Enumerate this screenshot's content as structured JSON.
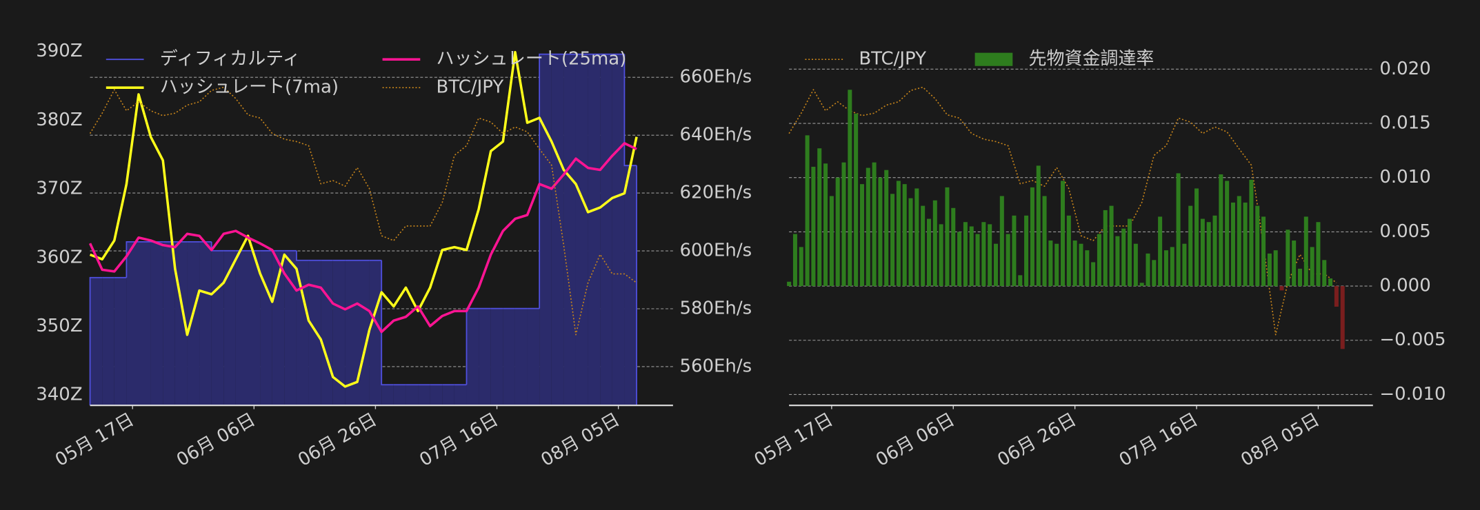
{
  "chart_data": [
    {
      "type": "line",
      "x": [
        "05-10",
        "05-12",
        "05-14",
        "05-16",
        "05-18",
        "05-20",
        "05-22",
        "05-24",
        "05-26",
        "05-28",
        "05-30",
        "06-01",
        "06-03",
        "06-05",
        "06-07",
        "06-09",
        "06-11",
        "06-13",
        "06-15",
        "06-17",
        "06-19",
        "06-21",
        "06-23",
        "06-25",
        "06-27",
        "06-29",
        "07-01",
        "07-03",
        "07-05",
        "07-07",
        "07-09",
        "07-11",
        "07-13",
        "07-15",
        "07-17",
        "07-19",
        "07-21",
        "07-23",
        "07-25",
        "07-27",
        "07-29",
        "07-31",
        "08-02",
        "08-04",
        "08-06",
        "08-08"
      ],
      "xlim": [
        "05-10",
        "08-14"
      ],
      "xticks": [
        {
          "value": "05-17",
          "label": "05月 17日"
        },
        {
          "value": "06-06",
          "label": "06月 06日"
        },
        {
          "value": "06-26",
          "label": "06月 26日"
        },
        {
          "value": "07-16",
          "label": "07月 16日"
        },
        {
          "value": "08-05",
          "label": "08月 05日"
        }
      ],
      "ylim": [
        338.5,
        392
      ],
      "yticks": [
        {
          "value": 340,
          "label": "340Z"
        },
        {
          "value": 350,
          "label": "350Z"
        },
        {
          "value": 360,
          "label": "360Z"
        },
        {
          "value": 370,
          "label": "370Z"
        },
        {
          "value": 380,
          "label": "380Z"
        },
        {
          "value": 390,
          "label": "390Z"
        }
      ],
      "y2lim": [
        546.6,
        673.7
      ],
      "y2ticks": [
        {
          "value": 560,
          "label": "560Eh/s"
        },
        {
          "value": 580,
          "label": "580Eh/s"
        },
        {
          "value": 600,
          "label": "600Eh/s"
        },
        {
          "value": 620,
          "label": "620Eh/s"
        },
        {
          "value": 640,
          "label": "640Eh/s"
        },
        {
          "value": 660,
          "label": "660Eh/s"
        }
      ],
      "y3lim": [
        6890000,
        11420000
      ],
      "grid": "y2",
      "legend": "upper left",
      "series": [
        {
          "name": "ディフィカルティ",
          "color": "#5050e0",
          "fill": "#2b2b6b",
          "style": "step-area",
          "values": [
            357.1,
            357.1,
            357.1,
            362.3,
            362.3,
            362.3,
            362.3,
            362.3,
            362.3,
            362.3,
            361.0,
            361.0,
            361.0,
            361.0,
            361.0,
            361.0,
            361.0,
            359.6,
            359.6,
            359.6,
            359.6,
            359.6,
            359.6,
            359.6,
            341.5,
            341.5,
            341.5,
            341.5,
            341.5,
            341.5,
            341.5,
            352.6,
            352.6,
            352.6,
            352.6,
            352.6,
            352.6,
            389.6,
            389.6,
            389.6,
            389.6,
            389.6,
            389.6,
            389.6,
            373.4,
            373.4
          ]
        },
        {
          "name": "ハッシュレート(7ma)",
          "color": "#ffff1a",
          "axis": "y2",
          "style": "solid",
          "values": [
            598.7,
            597.1,
            603.6,
            623.1,
            654.1,
            639.4,
            631.3,
            593.8,
            571.0,
            586.3,
            585.0,
            589.0,
            597.1,
            605.2,
            592.2,
            582.4,
            598.7,
            593.8,
            575.9,
            569.4,
            556.4,
            553.1,
            554.7,
            572.7,
            585.7,
            580.8,
            587.3,
            579.2,
            587.3,
            600.3,
            601.3,
            600.3,
            614.4,
            634.5,
            637.8,
            668.7,
            644.3,
            646.0,
            637.8,
            628.0,
            623.1,
            613.4,
            615.0,
            618.3,
            619.9,
            639.4
          ]
        },
        {
          "name": "ハッシュレート(25ma)",
          "color": "#ff1493",
          "axis": "y2",
          "style": "solid",
          "values": [
            602.6,
            593.5,
            592.9,
            598.1,
            604.6,
            603.6,
            602.0,
            601.3,
            605.9,
            605.2,
            600.3,
            605.9,
            606.9,
            604.6,
            602.6,
            600.3,
            592.2,
            586.3,
            588.3,
            587.3,
            581.8,
            579.8,
            581.8,
            579.2,
            572.0,
            575.9,
            577.2,
            580.8,
            574.0,
            577.5,
            579.2,
            579.2,
            587.3,
            598.7,
            606.9,
            611.1,
            612.4,
            623.1,
            621.5,
            626.4,
            631.9,
            628.7,
            628.0,
            632.9,
            637.2,
            635.2
          ]
        },
        {
          "name": "BTC/JPY",
          "color": "#c8851a",
          "axis": "y3",
          "style": "dotted",
          "values": [
            10240000,
            10490000,
            10780000,
            10520000,
            10630000,
            10520000,
            10460000,
            10490000,
            10590000,
            10630000,
            10770000,
            10810000,
            10670000,
            10470000,
            10430000,
            10240000,
            10170000,
            10140000,
            10090000,
            9620000,
            9660000,
            9590000,
            9820000,
            9560000,
            8980000,
            8920000,
            9100000,
            9100000,
            9100000,
            9390000,
            9970000,
            10090000,
            10430000,
            10380000,
            10240000,
            10320000,
            10260000,
            10050000,
            9850000,
            8860000,
            7760000,
            8400000,
            8750000,
            8510000,
            8510000,
            8400000
          ]
        }
      ]
    },
    {
      "type": "bar",
      "xlim": [
        "05-10",
        "08-14"
      ],
      "xticks": [
        {
          "value": "05-17",
          "label": "05月 17日"
        },
        {
          "value": "06-06",
          "label": "06月 06日"
        },
        {
          "value": "06-26",
          "label": "06月 26日"
        },
        {
          "value": "07-16",
          "label": "07月 16日"
        },
        {
          "value": "08-05",
          "label": "08月 05日"
        }
      ],
      "ylim": [
        -0.011,
        0.0229
      ],
      "yticks": [
        {
          "value": -0.01,
          "label": "−0.010"
        },
        {
          "value": -0.005,
          "label": "−0.005"
        },
        {
          "value": 0,
          "label": "0.000"
        },
        {
          "value": 0.005,
          "label": "0.005"
        },
        {
          "value": 0.01,
          "label": "0.010"
        },
        {
          "value": 0.015,
          "label": "0.015"
        },
        {
          "value": 0.02,
          "label": "0.020"
        }
      ],
      "y_axis_position": "right",
      "y3lim": [
        6890000,
        11420000
      ],
      "grid": "y",
      "legend": "upper left",
      "series": [
        {
          "name": "BTC/JPY",
          "type": "line",
          "color": "#c8851a",
          "axis": "y3",
          "style": "dotted",
          "x": [
            "05-10",
            "05-12",
            "05-14",
            "05-16",
            "05-18",
            "05-20",
            "05-22",
            "05-24",
            "05-26",
            "05-28",
            "05-30",
            "06-01",
            "06-03",
            "06-05",
            "06-07",
            "06-09",
            "06-11",
            "06-13",
            "06-15",
            "06-17",
            "06-19",
            "06-21",
            "06-23",
            "06-25",
            "06-27",
            "06-29",
            "07-01",
            "07-03",
            "07-05",
            "07-07",
            "07-09",
            "07-11",
            "07-13",
            "07-15",
            "07-17",
            "07-19",
            "07-21",
            "07-23",
            "07-25",
            "07-27",
            "07-29",
            "07-31",
            "08-02",
            "08-04",
            "08-06",
            "08-08"
          ],
          "values": [
            10240000,
            10490000,
            10780000,
            10520000,
            10630000,
            10520000,
            10460000,
            10490000,
            10590000,
            10630000,
            10770000,
            10810000,
            10670000,
            10470000,
            10430000,
            10240000,
            10170000,
            10140000,
            10090000,
            9620000,
            9660000,
            9590000,
            9820000,
            9560000,
            8980000,
            8920000,
            9100000,
            9100000,
            9100000,
            9390000,
            9970000,
            10090000,
            10430000,
            10380000,
            10240000,
            10320000,
            10260000,
            10050000,
            9850000,
            8860000,
            7760000,
            8400000,
            8750000,
            8510000,
            8510000,
            8400000
          ]
        },
        {
          "name": "先物資金調達率",
          "type": "bar",
          "color": "#2e7d1e",
          "negative_color": "#7a1e1e",
          "x": [
            "05-10",
            "05-11",
            "05-12",
            "05-13",
            "05-14",
            "05-15",
            "05-16",
            "05-17",
            "05-18",
            "05-19",
            "05-20",
            "05-21",
            "05-22",
            "05-23",
            "05-24",
            "05-25",
            "05-26",
            "05-27",
            "05-28",
            "05-29",
            "05-30",
            "05-31",
            "06-01",
            "06-02",
            "06-03",
            "06-04",
            "06-05",
            "06-06",
            "06-07",
            "06-08",
            "06-09",
            "06-10",
            "06-11",
            "06-12",
            "06-13",
            "06-14",
            "06-15",
            "06-16",
            "06-17",
            "06-18",
            "06-19",
            "06-20",
            "06-21",
            "06-22",
            "06-23",
            "06-24",
            "06-25",
            "06-26",
            "06-27",
            "06-28",
            "06-29",
            "06-30",
            "07-01",
            "07-02",
            "07-03",
            "07-04",
            "07-05",
            "07-06",
            "07-07",
            "07-08",
            "07-09",
            "07-10",
            "07-11",
            "07-12",
            "07-13",
            "07-14",
            "07-15",
            "07-16",
            "07-17",
            "07-18",
            "07-19",
            "07-20",
            "07-21",
            "07-22",
            "07-23",
            "07-24",
            "07-25",
            "07-26",
            "07-27",
            "07-28",
            "07-29",
            "07-30",
            "07-31",
            "08-01",
            "08-02",
            "08-03",
            "08-04",
            "08-05",
            "08-06",
            "08-07",
            "08-08",
            "08-09"
          ],
          "values": [
            0.0004,
            0.0048,
            0.0036,
            0.0139,
            0.011,
            0.0127,
            0.0113,
            0.0083,
            0.01,
            0.0114,
            0.0181,
            0.0159,
            0.0094,
            0.0109,
            0.0114,
            0.01,
            0.0107,
            0.0085,
            0.0097,
            0.0094,
            0.0081,
            0.009,
            0.0074,
            0.0062,
            0.0079,
            0.0057,
            0.0091,
            0.0072,
            0.005,
            0.0059,
            0.0055,
            0.0048,
            0.0059,
            0.0057,
            0.0039,
            0.0083,
            0.0048,
            0.0065,
            0.001,
            0.0065,
            0.0091,
            0.0111,
            0.0083,
            0.0042,
            0.0039,
            0.0097,
            0.0065,
            0.0042,
            0.0039,
            0.0033,
            0.0022,
            0.0048,
            0.007,
            0.0074,
            0.0046,
            0.0053,
            0.0062,
            0.0039,
            0.0003,
            0.003,
            0.0024,
            0.0064,
            0.0033,
            0.0036,
            0.0104,
            0.0039,
            0.0074,
            0.009,
            0.0062,
            0.0059,
            0.0065,
            0.0103,
            0.0097,
            0.0077,
            0.0083,
            0.0077,
            0.0098,
            0.0074,
            0.0064,
            0.003,
            0.0033,
            -0.0004,
            0.0052,
            0.0042,
            0.0016,
            0.0064,
            0.0036,
            0.0059,
            0.0024,
            0.0007,
            -0.0019,
            -0.0058
          ]
        }
      ]
    }
  ]
}
